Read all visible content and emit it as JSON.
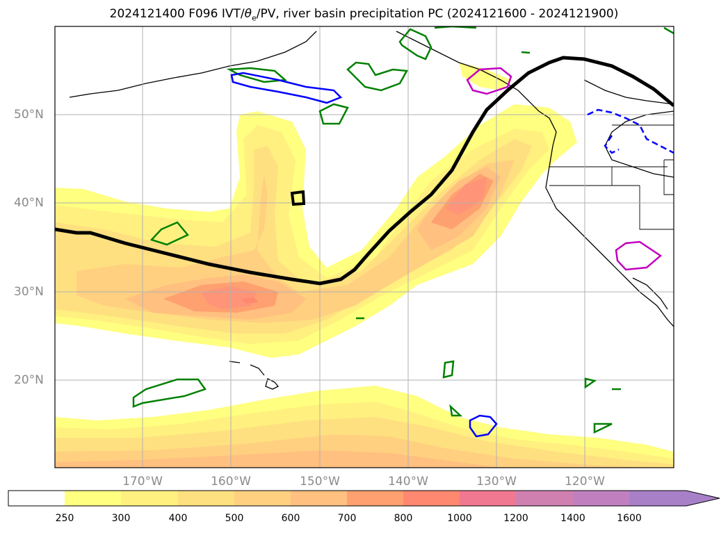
{
  "title": {
    "prefix": "2024121400 F096 IVT/",
    "theta": "θ",
    "theta_sub": "e",
    "suffix": "/PV, river basin precipitation PC (2024121600 - 2024121900)"
  },
  "map": {
    "latitude_labels": [
      "50°N",
      "40°N",
      "30°N",
      "20°N"
    ],
    "longitude_labels": [
      "170°W",
      "160°W",
      "150°W",
      "140°W",
      "130°W",
      "120°W"
    ],
    "field": "IVT",
    "contour_colors": {
      "pv_line": "#000000",
      "precip_positive": "#0000ff",
      "precip_dashed": "#0000ff",
      "green_contour": "#008000",
      "magenta_contour": "#c000c0"
    }
  },
  "colorbar": {
    "levels": [
      "250",
      "300",
      "400",
      "500",
      "600",
      "700",
      "800",
      "1000",
      "1200",
      "1400",
      "1600"
    ],
    "colors": [
      "#ffffff",
      "#ffff80",
      "#fff080",
      "#ffe080",
      "#ffd080",
      "#ffc080",
      "#ffa070",
      "#ff8870",
      "#f07890",
      "#d080b0",
      "#c080c0",
      "#a880c8"
    ],
    "extend": "max"
  }
}
